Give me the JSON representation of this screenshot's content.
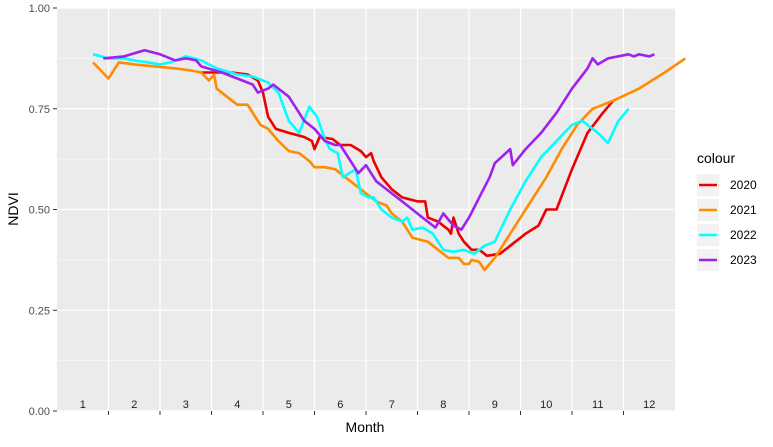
{
  "chart_data": {
    "type": "line",
    "title": "",
    "xlabel": "Month",
    "ylabel": "NDVI",
    "xlim": [
      0.5,
      12.5
    ],
    "ylim": [
      0,
      1
    ],
    "x_tick_labels": [
      "1",
      "2",
      "3",
      "4",
      "5",
      "6",
      "7",
      "8",
      "9",
      "10",
      "11",
      "12"
    ],
    "y_tick_labels": [
      "0.00",
      "0.25",
      "0.50",
      "0.75",
      "1.00"
    ],
    "y_ticks": [
      0,
      0.25,
      0.5,
      0.75,
      1.0
    ],
    "grid": true,
    "legend": {
      "title": "colour",
      "position": "right"
    },
    "series": [
      {
        "name": "2020",
        "color": "#EE0000",
        "points": [
          [
            3.3,
            0.84
          ],
          [
            3.6,
            0.84
          ],
          [
            3.9,
            0.84
          ],
          [
            4.2,
            0.835
          ],
          [
            4.4,
            0.82
          ],
          [
            4.5,
            0.79
          ],
          [
            4.6,
            0.73
          ],
          [
            4.75,
            0.7
          ],
          [
            5.0,
            0.69
          ],
          [
            5.3,
            0.68
          ],
          [
            5.45,
            0.67
          ],
          [
            5.5,
            0.65
          ],
          [
            5.6,
            0.68
          ],
          [
            5.85,
            0.675
          ],
          [
            6.0,
            0.66
          ],
          [
            6.2,
            0.66
          ],
          [
            6.4,
            0.645
          ],
          [
            6.5,
            0.63
          ],
          [
            6.6,
            0.64
          ],
          [
            6.65,
            0.62
          ],
          [
            6.8,
            0.58
          ],
          [
            7.0,
            0.55
          ],
          [
            7.2,
            0.53
          ],
          [
            7.5,
            0.52
          ],
          [
            7.65,
            0.52
          ],
          [
            7.7,
            0.48
          ],
          [
            7.9,
            0.47
          ],
          [
            8.1,
            0.45
          ],
          [
            8.15,
            0.44
          ],
          [
            8.2,
            0.48
          ],
          [
            8.3,
            0.44
          ],
          [
            8.4,
            0.42
          ],
          [
            8.55,
            0.4
          ],
          [
            8.7,
            0.4
          ],
          [
            8.85,
            0.385
          ],
          [
            9.1,
            0.39
          ],
          [
            9.3,
            0.41
          ],
          [
            9.6,
            0.44
          ],
          [
            9.85,
            0.46
          ],
          [
            10.0,
            0.5
          ],
          [
            10.2,
            0.5
          ],
          [
            10.5,
            0.6
          ],
          [
            10.8,
            0.69
          ],
          [
            11.1,
            0.74
          ],
          [
            11.3,
            0.77
          ]
        ]
      },
      {
        "name": "2021",
        "color": "#FF8C00",
        "points": [
          [
            1.2,
            0.865
          ],
          [
            1.5,
            0.825
          ],
          [
            1.7,
            0.865
          ],
          [
            2.0,
            0.86
          ],
          [
            2.4,
            0.855
          ],
          [
            2.8,
            0.85
          ],
          [
            3.1,
            0.845
          ],
          [
            3.3,
            0.84
          ],
          [
            3.45,
            0.82
          ],
          [
            3.55,
            0.835
          ],
          [
            3.6,
            0.8
          ],
          [
            3.8,
            0.78
          ],
          [
            4.0,
            0.76
          ],
          [
            4.2,
            0.76
          ],
          [
            4.3,
            0.74
          ],
          [
            4.45,
            0.71
          ],
          [
            4.6,
            0.7
          ],
          [
            4.8,
            0.67
          ],
          [
            5.0,
            0.645
          ],
          [
            5.2,
            0.64
          ],
          [
            5.4,
            0.62
          ],
          [
            5.5,
            0.605
          ],
          [
            5.7,
            0.605
          ],
          [
            5.9,
            0.6
          ],
          [
            6.1,
            0.58
          ],
          [
            6.3,
            0.56
          ],
          [
            6.5,
            0.54
          ],
          [
            6.7,
            0.52
          ],
          [
            6.9,
            0.51
          ],
          [
            7.0,
            0.49
          ],
          [
            7.2,
            0.47
          ],
          [
            7.4,
            0.43
          ],
          [
            7.7,
            0.42
          ],
          [
            7.9,
            0.4
          ],
          [
            8.1,
            0.38
          ],
          [
            8.3,
            0.38
          ],
          [
            8.4,
            0.365
          ],
          [
            8.5,
            0.365
          ],
          [
            8.55,
            0.375
          ],
          [
            8.7,
            0.37
          ],
          [
            8.8,
            0.35
          ],
          [
            9.0,
            0.38
          ],
          [
            9.2,
            0.42
          ],
          [
            9.5,
            0.48
          ],
          [
            9.7,
            0.52
          ],
          [
            10.0,
            0.58
          ],
          [
            10.3,
            0.65
          ],
          [
            10.6,
            0.71
          ],
          [
            10.9,
            0.75
          ],
          [
            11.3,
            0.77
          ],
          [
            11.8,
            0.8
          ],
          [
            12.3,
            0.84
          ],
          [
            12.7,
            0.875
          ]
        ]
      },
      {
        "name": "2022",
        "color": "#00FFFF",
        "points": [
          [
            1.2,
            0.885
          ],
          [
            1.5,
            0.875
          ],
          [
            1.8,
            0.875
          ],
          [
            2.0,
            0.87
          ],
          [
            2.5,
            0.86
          ],
          [
            2.7,
            0.865
          ],
          [
            3.0,
            0.88
          ],
          [
            3.3,
            0.87
          ],
          [
            3.6,
            0.85
          ],
          [
            4.0,
            0.835
          ],
          [
            4.3,
            0.83
          ],
          [
            4.6,
            0.815
          ],
          [
            4.8,
            0.79
          ],
          [
            5.0,
            0.72
          ],
          [
            5.2,
            0.69
          ],
          [
            5.4,
            0.755
          ],
          [
            5.55,
            0.73
          ],
          [
            5.7,
            0.675
          ],
          [
            5.8,
            0.65
          ],
          [
            5.95,
            0.64
          ],
          [
            6.05,
            0.58
          ],
          [
            6.3,
            0.6
          ],
          [
            6.4,
            0.54
          ],
          [
            6.55,
            0.53
          ],
          [
            6.65,
            0.53
          ],
          [
            6.8,
            0.5
          ],
          [
            7.0,
            0.48
          ],
          [
            7.2,
            0.47
          ],
          [
            7.3,
            0.48
          ],
          [
            7.4,
            0.45
          ],
          [
            7.6,
            0.455
          ],
          [
            7.8,
            0.44
          ],
          [
            8.0,
            0.4
          ],
          [
            8.2,
            0.395
          ],
          [
            8.4,
            0.4
          ],
          [
            8.6,
            0.39
          ],
          [
            8.8,
            0.41
          ],
          [
            9.0,
            0.42
          ],
          [
            9.3,
            0.5
          ],
          [
            9.6,
            0.57
          ],
          [
            9.9,
            0.63
          ],
          [
            10.2,
            0.67
          ],
          [
            10.5,
            0.71
          ],
          [
            10.7,
            0.72
          ],
          [
            10.9,
            0.7
          ],
          [
            11.0,
            0.69
          ],
          [
            11.2,
            0.665
          ],
          [
            11.4,
            0.72
          ],
          [
            11.6,
            0.75
          ]
        ]
      },
      {
        "name": "2023",
        "color": "#A020F0",
        "points": [
          [
            1.4,
            0.875
          ],
          [
            1.8,
            0.88
          ],
          [
            2.2,
            0.895
          ],
          [
            2.5,
            0.885
          ],
          [
            2.8,
            0.87
          ],
          [
            3.0,
            0.875
          ],
          [
            3.2,
            0.87
          ],
          [
            3.3,
            0.855
          ],
          [
            3.7,
            0.84
          ],
          [
            4.0,
            0.825
          ],
          [
            4.3,
            0.81
          ],
          [
            4.4,
            0.79
          ],
          [
            4.6,
            0.8
          ],
          [
            4.7,
            0.81
          ],
          [
            5.0,
            0.78
          ],
          [
            5.3,
            0.72
          ],
          [
            5.5,
            0.7
          ],
          [
            5.7,
            0.67
          ],
          [
            5.9,
            0.66
          ],
          [
            6.0,
            0.66
          ],
          [
            6.2,
            0.62
          ],
          [
            6.35,
            0.59
          ],
          [
            6.5,
            0.61
          ],
          [
            6.7,
            0.57
          ],
          [
            7.0,
            0.54
          ],
          [
            7.2,
            0.52
          ],
          [
            7.4,
            0.5
          ],
          [
            7.6,
            0.48
          ],
          [
            7.85,
            0.455
          ],
          [
            8.0,
            0.49
          ],
          [
            8.2,
            0.46
          ],
          [
            8.35,
            0.45
          ],
          [
            8.5,
            0.48
          ],
          [
            8.7,
            0.53
          ],
          [
            8.9,
            0.58
          ],
          [
            9.0,
            0.615
          ],
          [
            9.3,
            0.65
          ],
          [
            9.35,
            0.61
          ],
          [
            9.6,
            0.65
          ],
          [
            9.9,
            0.69
          ],
          [
            10.2,
            0.74
          ],
          [
            10.5,
            0.8
          ],
          [
            10.8,
            0.85
          ],
          [
            10.9,
            0.875
          ],
          [
            11.0,
            0.86
          ],
          [
            11.2,
            0.875
          ],
          [
            11.6,
            0.885
          ],
          [
            11.7,
            0.88
          ],
          [
            11.8,
            0.885
          ],
          [
            12.0,
            0.88
          ],
          [
            12.1,
            0.885
          ]
        ]
      }
    ]
  }
}
